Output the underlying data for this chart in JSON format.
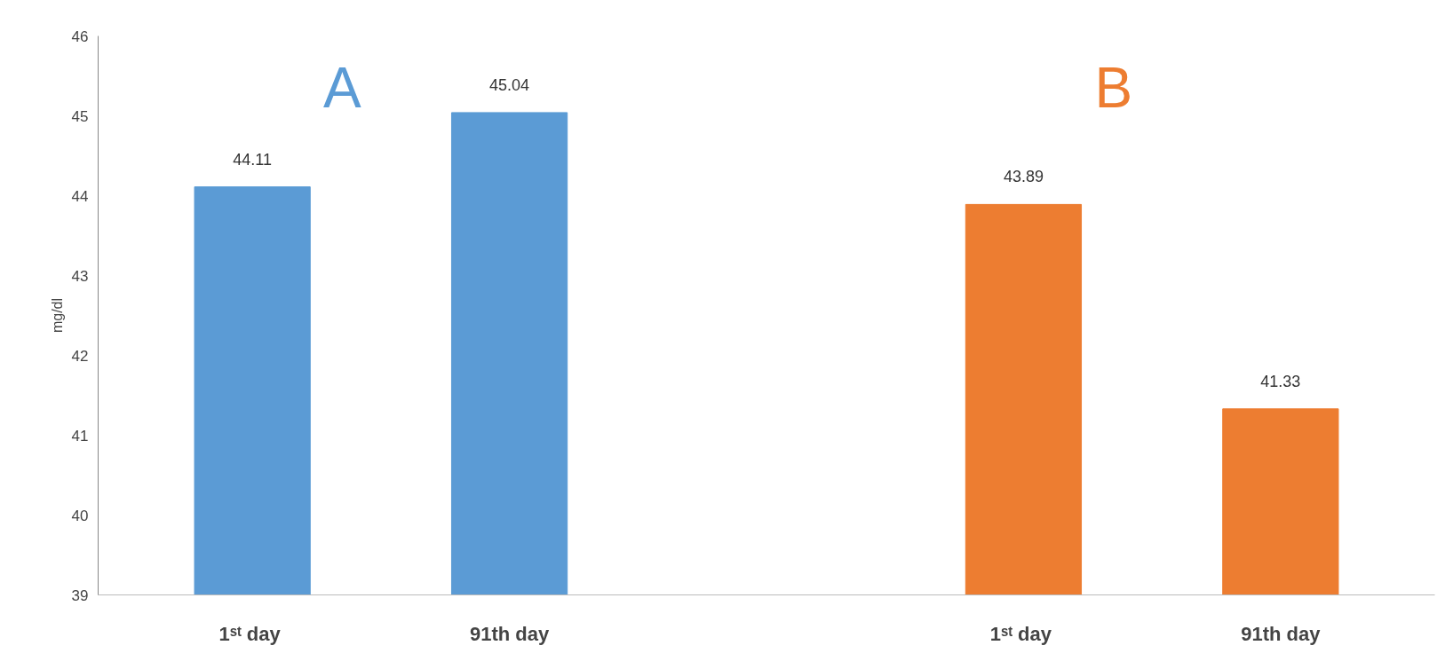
{
  "chart_data": {
    "type": "bar",
    "ylabel": "mg/dl",
    "categories": [
      "1ˢᵗ  day",
      "91th day",
      null,
      "1ˢᵗ  day",
      "91th day"
    ],
    "values": [
      44.11,
      45.04,
      null,
      43.89,
      41.33
    ],
    "colors": [
      "#5b9bd5",
      "#5b9bd5",
      "#5b9bd5",
      "#ed7d31",
      "#ed7d31"
    ],
    "ylim": [
      39,
      46
    ],
    "yticks": [
      39,
      40,
      41,
      42,
      43,
      44,
      45,
      46
    ],
    "data_labels": true,
    "grid": false,
    "annotations": [
      "A",
      "B"
    ]
  }
}
